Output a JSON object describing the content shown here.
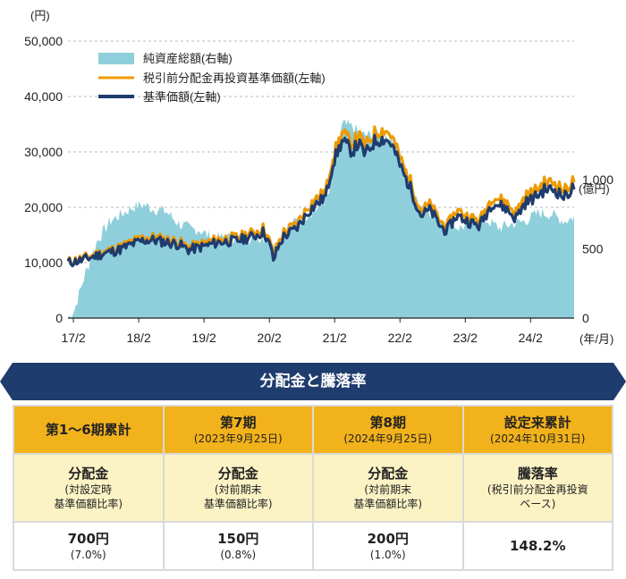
{
  "chart_data": {
    "type": "area+line",
    "left_axis": {
      "unit": "(円)",
      "ticks": [
        "50,000",
        "40,000",
        "30,000",
        "20,000",
        "10,000",
        "0"
      ],
      "range": [
        0,
        50000
      ]
    },
    "right_axis": {
      "unit": "(億円)",
      "ticks": [
        "1,000",
        "500",
        "0"
      ],
      "range": [
        0,
        2000
      ]
    },
    "x_axis": {
      "unit": "(年/月)",
      "ticks": [
        "17/2",
        "18/2",
        "19/2",
        "20/2",
        "21/2",
        "22/2",
        "23/2",
        "24/2"
      ]
    },
    "legend": [
      {
        "label": "純資産総額(右軸)",
        "color": "#8ecfdb",
        "kind": "area"
      },
      {
        "label": "税引前分配金再投資基準価額(左軸)",
        "color": "#ee9a00",
        "kind": "line"
      },
      {
        "label": "基準価額(左軸)",
        "color": "#1f3c6e",
        "kind": "line"
      }
    ],
    "x_range": [
      2017.0,
      2024.75
    ],
    "net_assets_oku": {
      "x": [
        2017.0,
        2017.1,
        2017.25,
        2017.45,
        2017.65,
        2017.85,
        2018.0,
        2018.15,
        2018.3,
        2018.5,
        2018.7,
        2018.9,
        2019.0,
        2019.2,
        2019.4,
        2019.6,
        2019.8,
        2020.0,
        2020.15,
        2020.2,
        2020.3,
        2020.5,
        2020.7,
        2020.85,
        2021.0,
        2021.1,
        2021.2,
        2021.35,
        2021.5,
        2021.65,
        2021.8,
        2021.9,
        2022.0,
        2022.15,
        2022.3,
        2022.5,
        2022.7,
        2022.85,
        2023.0,
        2023.2,
        2023.4,
        2023.6,
        2023.8,
        2024.0,
        2024.2,
        2024.4,
        2024.6,
        2024.75
      ],
      "values": [
        0,
        60,
        300,
        560,
        700,
        760,
        800,
        820,
        790,
        770,
        680,
        640,
        640,
        580,
        580,
        580,
        580,
        580,
        560,
        540,
        640,
        700,
        760,
        800,
        900,
        1150,
        1400,
        1380,
        1320,
        1320,
        1330,
        1310,
        1250,
        1000,
        860,
        790,
        720,
        680,
        650,
        690,
        710,
        650,
        680,
        700,
        760,
        750,
        700,
        730
      ]
    },
    "reinvested_nav_yen": {
      "x": [
        2017.0,
        2017.2,
        2017.5,
        2017.8,
        2018.0,
        2018.15,
        2018.3,
        2018.5,
        2018.7,
        2018.85,
        2018.95,
        2019.1,
        2019.3,
        2019.6,
        2019.85,
        2020.0,
        2020.1,
        2020.15,
        2020.2,
        2020.3,
        2020.5,
        2020.7,
        2020.85,
        2020.95,
        2021.05,
        2021.2,
        2021.35,
        2021.45,
        2021.55,
        2021.7,
        2021.85,
        2021.95,
        2022.05,
        2022.15,
        2022.25,
        2022.4,
        2022.55,
        2022.7,
        2022.8,
        2022.95,
        2023.1,
        2023.3,
        2023.5,
        2023.7,
        2023.85,
        2024.0,
        2024.15,
        2024.3,
        2024.45,
        2024.6,
        2024.75
      ],
      "values": [
        10200,
        10700,
        11800,
        12800,
        13900,
        14500,
        14600,
        14200,
        13800,
        12800,
        13100,
        13600,
        14300,
        14600,
        15500,
        16300,
        13400,
        11000,
        13000,
        15500,
        17000,
        20500,
        22000,
        23000,
        29000,
        33500,
        31500,
        33000,
        31000,
        33500,
        34000,
        33000,
        30000,
        27000,
        24500,
        19500,
        20500,
        17500,
        16500,
        19500,
        18500,
        17500,
        22000,
        21000,
        19000,
        22000,
        23000,
        24500,
        24500,
        23000,
        25000
      ]
    },
    "nav_yen": {
      "x": [
        2017.0,
        2017.2,
        2017.5,
        2017.8,
        2018.0,
        2018.15,
        2018.3,
        2018.5,
        2018.7,
        2018.85,
        2018.95,
        2019.1,
        2019.3,
        2019.6,
        2019.85,
        2020.0,
        2020.1,
        2020.15,
        2020.2,
        2020.3,
        2020.5,
        2020.7,
        2020.85,
        2020.95,
        2021.05,
        2021.2,
        2021.35,
        2021.45,
        2021.55,
        2021.7,
        2021.85,
        2021.95,
        2022.05,
        2022.15,
        2022.25,
        2022.4,
        2022.55,
        2022.7,
        2022.8,
        2022.95,
        2023.1,
        2023.3,
        2023.5,
        2023.7,
        2023.85,
        2024.0,
        2024.15,
        2024.3,
        2024.45,
        2024.6,
        2024.75
      ],
      "values": [
        10000,
        10400,
        11500,
        12400,
        13400,
        14000,
        14100,
        13700,
        13300,
        12300,
        12600,
        13000,
        13700,
        14000,
        14800,
        15600,
        12800,
        10400,
        12300,
        14700,
        16200,
        19500,
        21000,
        22000,
        27800,
        32000,
        30100,
        31500,
        29500,
        32000,
        32400,
        31500,
        28600,
        25700,
        23300,
        18600,
        19500,
        16600,
        15700,
        18500,
        17600,
        16600,
        20900,
        19900,
        18000,
        20800,
        21800,
        23200,
        23200,
        21800,
        23700
      ]
    }
  },
  "banner": {
    "title": "分配金と騰落率"
  },
  "table": {
    "headers": [
      {
        "main": "第1～6期累計",
        "sub": ""
      },
      {
        "main": "第7期",
        "sub": "(2023年9月25日)"
      },
      {
        "main": "第8期",
        "sub": "(2024年9月25日)"
      },
      {
        "main": "設定来累計",
        "sub": "(2024年10月31日)"
      }
    ],
    "descriptions": [
      {
        "main": "分配金",
        "sub1": "(対設定時",
        "sub2": "基準価額比率)"
      },
      {
        "main": "分配金",
        "sub1": "(対前期末",
        "sub2": "基準価額比率)"
      },
      {
        "main": "分配金",
        "sub1": "(対前期末",
        "sub2": "基準価額比率)"
      },
      {
        "main": "騰落率",
        "sub1": "(税引前分配金再投資",
        "sub2": "ベース)"
      }
    ],
    "values": [
      {
        "main": "700円",
        "sub": "(7.0%)"
      },
      {
        "main": "150円",
        "sub": "(0.8%)"
      },
      {
        "main": "200円",
        "sub": "(1.0%)"
      },
      {
        "main": "148.2%",
        "sub": ""
      }
    ]
  }
}
